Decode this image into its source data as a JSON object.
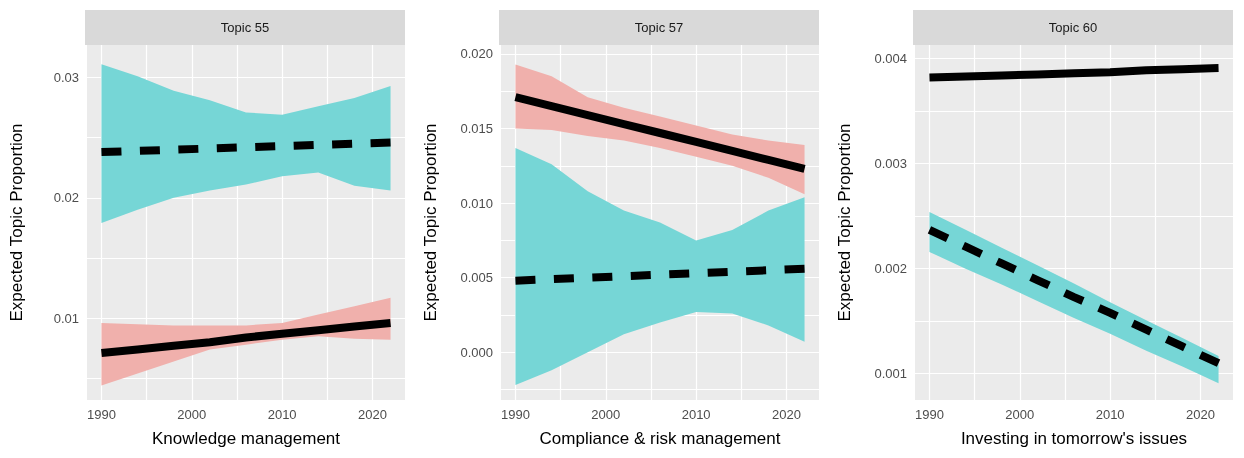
{
  "chart_data": [
    {
      "type": "line",
      "title": "Topic 55",
      "xlabel": "Knowledge management",
      "ylabel": "Expected Topic Proportion",
      "grid": true,
      "marker": "none",
      "x": [
        1990,
        1994,
        1998,
        2002,
        2006,
        2010,
        2014,
        2018,
        2022
      ],
      "xlim": [
        1988.4,
        2023.6
      ],
      "xticks": [
        1990,
        {
          "value": 1995,
          "label": null
        },
        2000,
        {
          "value": 2005,
          "label": null
        },
        2010,
        {
          "value": 2015,
          "label": null
        },
        2020
      ],
      "ylim": [
        0.0032,
        0.0327
      ],
      "yticks": [
        {
          "value": 0.005,
          "label": null
        },
        0.01,
        {
          "value": 0.015,
          "label": null
        },
        0.02,
        {
          "value": 0.025,
          "label": null
        },
        0.03
      ],
      "series": [
        {
          "color": "#000000",
          "line_style": "solid",
          "values": [
            0.0071,
            0.0074,
            0.0077,
            0.008,
            0.0084,
            0.0087,
            0.009,
            0.0093,
            0.0096
          ],
          "lower": [
            0.0044,
            0.0054,
            0.0064,
            0.0074,
            0.0078,
            0.0082,
            0.0085,
            0.0083,
            0.0082
          ],
          "upper": [
            0.0096,
            0.0095,
            0.0094,
            0.0094,
            0.0094,
            0.0096,
            0.0103,
            0.011,
            0.0117
          ]
        },
        {
          "color": "#000000",
          "line_style": "dashed",
          "values": [
            0.0238,
            0.0239,
            0.024,
            0.0241,
            0.0242,
            0.0243,
            0.0244,
            0.0245,
            0.0246
          ],
          "lower": [
            0.0179,
            0.019,
            0.02,
            0.0206,
            0.0211,
            0.0218,
            0.0221,
            0.021,
            0.0206
          ],
          "upper": [
            0.0311,
            0.0301,
            0.0289,
            0.0281,
            0.0271,
            0.0269,
            0.0276,
            0.0283,
            0.0293
          ]
        }
      ]
    },
    {
      "type": "line",
      "title": "Topic 57",
      "xlabel": "Compliance & risk management",
      "ylabel": "Expected Topic Proportion",
      "grid": true,
      "marker": "none",
      "x": [
        1990,
        1994,
        1998,
        2002,
        2006,
        2010,
        2014,
        2018,
        2022
      ],
      "xlim": [
        1988.4,
        2023.6
      ],
      "xticks": [
        1990,
        {
          "value": 1995,
          "label": null
        },
        2000,
        {
          "value": 2005,
          "label": null
        },
        2010,
        {
          "value": 2015,
          "label": null
        },
        2020
      ],
      "ylim": [
        -0.0032,
        0.0206
      ],
      "yticks": [
        {
          "value": -0.0025,
          "label": null
        },
        {
          "value": 0,
          "label": "0.000"
        },
        {
          "value": 0.0025,
          "label": null
        },
        {
          "value": 0.005,
          "label": "0.005"
        },
        {
          "value": 0.0075,
          "label": null
        },
        {
          "value": 0.01,
          "label": "0.010"
        },
        {
          "value": 0.0125,
          "label": null
        },
        {
          "value": 0.015,
          "label": "0.015"
        },
        {
          "value": 0.0175,
          "label": null
        },
        {
          "value": 0.02,
          "label": "0.020"
        }
      ],
      "series": [
        {
          "color": "#000000",
          "line_style": "solid",
          "values": [
            0.0171,
            0.0165,
            0.0159,
            0.0153,
            0.0147,
            0.0141,
            0.0135,
            0.0129,
            0.0123
          ],
          "lower": [
            0.015,
            0.0149,
            0.0145,
            0.0142,
            0.0137,
            0.0131,
            0.0125,
            0.0117,
            0.0106
          ],
          "upper": [
            0.0193,
            0.0185,
            0.0171,
            0.0164,
            0.0158,
            0.0152,
            0.0146,
            0.0142,
            0.0139
          ]
        },
        {
          "color": "#000000",
          "line_style": "dashed",
          "values": [
            0.0048,
            0.0049,
            0.005,
            0.0051,
            0.0052,
            0.0053,
            0.0054,
            0.0055,
            0.0056
          ],
          "lower": [
            -0.0022,
            -0.0012,
            0.0,
            0.0012,
            0.002,
            0.0027,
            0.0026,
            0.0018,
            0.0007
          ],
          "upper": [
            0.0137,
            0.0126,
            0.0108,
            0.0095,
            0.0087,
            0.0075,
            0.0082,
            0.0095,
            0.0104
          ]
        }
      ]
    },
    {
      "type": "line",
      "title": "Topic 60",
      "xlabel": "Investing in tomorrow's issues",
      "ylabel": "Expected Topic Proportion",
      "grid": true,
      "marker": "none",
      "x": [
        1990,
        1994,
        1998,
        2002,
        2006,
        2010,
        2014,
        2018,
        2022
      ],
      "xlim": [
        1988.4,
        2023.6
      ],
      "xticks": [
        1990,
        {
          "value": 1995,
          "label": null
        },
        2000,
        {
          "value": 2005,
          "label": null
        },
        2010,
        {
          "value": 2015,
          "label": null
        },
        2020
      ],
      "ylim": [
        0.00075,
        0.00413
      ],
      "yticks": [
        0.001,
        {
          "value": 0.0015,
          "label": null
        },
        0.002,
        {
          "value": 0.0025,
          "label": null
        },
        0.003,
        {
          "value": 0.0035,
          "label": null
        },
        0.004
      ],
      "series": [
        {
          "color": "#000000",
          "line_style": "solid",
          "values": [
            0.00382,
            0.00383,
            0.00384,
            0.00385,
            0.00386,
            0.00387,
            0.00389,
            0.0039,
            0.00391
          ]
        },
        {
          "color": "#000000",
          "line_style": "dashed",
          "values": [
            0.00237,
            0.00221,
            0.00205,
            0.00189,
            0.00173,
            0.00158,
            0.00142,
            0.00126,
            0.0011
          ],
          "lower": [
            0.00216,
            0.002,
            0.00185,
            0.00169,
            0.00153,
            0.00138,
            0.00122,
            0.00107,
            0.00091
          ],
          "upper": [
            0.00254,
            0.00237,
            0.0022,
            0.00203,
            0.00186,
            0.00168,
            0.00151,
            0.00134,
            0.00117
          ]
        }
      ]
    }
  ]
}
